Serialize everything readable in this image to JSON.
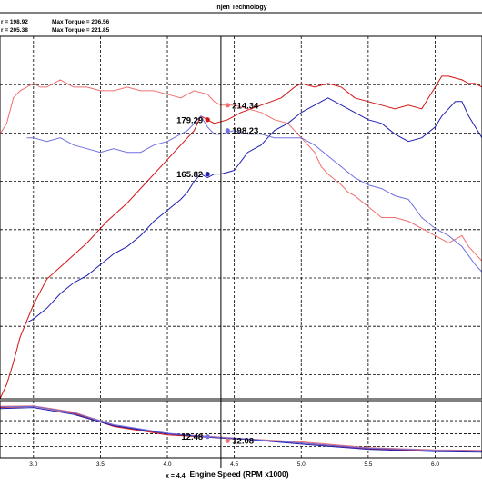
{
  "title": "Injen Technology",
  "legend": {
    "power_a": "r = 198.92",
    "torque_a": "Max Torque = 206.56",
    "power_b": "r = 205.38",
    "torque_b": "Max Torque = 221.85"
  },
  "xlabel": "Engine Speed (RPM x1000)",
  "xlabel_partial": "x = 4.4",
  "cursor_x": 4.4,
  "colors": {
    "red": "#d21414",
    "lightred": "#f07070",
    "blue": "#2020b0",
    "lightblue": "#7070e0"
  },
  "chart_data": [
    {
      "type": "line",
      "title": "Injen Technology",
      "xlabel": "Engine Speed (RPM x1000)",
      "xlim": [
        2.75,
        6.35
      ],
      "ylim": [
        0,
        1
      ],
      "x_ticks": [
        3.0,
        3.5,
        4.0,
        4.5,
        5.0,
        5.5,
        6.0
      ],
      "x_tick_labels": [
        "3.0",
        "3.5",
        "4.0",
        "4.5",
        "5.0",
        "5.5",
        "6.0"
      ],
      "grid": true,
      "series": [
        {
          "key": "red",
          "points": [
            [
              2.75,
              0.0
            ],
            [
              2.8,
              0.04
            ],
            [
              2.85,
              0.1
            ],
            [
              2.9,
              0.17
            ],
            [
              3.0,
              0.26
            ],
            [
              3.1,
              0.33
            ],
            [
              3.25,
              0.38
            ],
            [
              3.4,
              0.43
            ],
            [
              3.55,
              0.49
            ],
            [
              3.7,
              0.54
            ],
            [
              3.85,
              0.6
            ],
            [
              4.0,
              0.66
            ],
            [
              4.1,
              0.7
            ],
            [
              4.2,
              0.74
            ],
            [
              4.25,
              0.78
            ],
            [
              4.3,
              0.77
            ],
            [
              4.35,
              0.76
            ],
            [
              4.45,
              0.77
            ],
            [
              4.55,
              0.79
            ],
            [
              4.7,
              0.81
            ],
            [
              4.85,
              0.83
            ],
            [
              4.95,
              0.86
            ],
            [
              5.0,
              0.87
            ],
            [
              5.1,
              0.86
            ],
            [
              5.2,
              0.87
            ],
            [
              5.3,
              0.86
            ],
            [
              5.4,
              0.83
            ],
            [
              5.5,
              0.82
            ],
            [
              5.6,
              0.81
            ],
            [
              5.7,
              0.8
            ],
            [
              5.8,
              0.81
            ],
            [
              5.9,
              0.8
            ],
            [
              5.95,
              0.83
            ],
            [
              6.0,
              0.86
            ],
            [
              6.05,
              0.89
            ],
            [
              6.1,
              0.89
            ],
            [
              6.2,
              0.88
            ],
            [
              6.25,
              0.87
            ],
            [
              6.3,
              0.87
            ],
            [
              6.35,
              0.86
            ]
          ]
        },
        {
          "key": "lightred",
          "points": [
            [
              2.75,
              0.73
            ],
            [
              2.8,
              0.76
            ],
            [
              2.85,
              0.83
            ],
            [
              2.9,
              0.85
            ],
            [
              2.95,
              0.86
            ],
            [
              3.0,
              0.87
            ],
            [
              3.05,
              0.86
            ],
            [
              3.1,
              0.86
            ],
            [
              3.15,
              0.87
            ],
            [
              3.2,
              0.88
            ],
            [
              3.3,
              0.86
            ],
            [
              3.4,
              0.86
            ],
            [
              3.5,
              0.85
            ],
            [
              3.6,
              0.85
            ],
            [
              3.7,
              0.86
            ],
            [
              3.8,
              0.85
            ],
            [
              3.9,
              0.85
            ],
            [
              4.0,
              0.84
            ],
            [
              4.1,
              0.83
            ],
            [
              4.15,
              0.84
            ],
            [
              4.2,
              0.85
            ],
            [
              4.3,
              0.84
            ],
            [
              4.35,
              0.82
            ],
            [
              4.4,
              0.81
            ],
            [
              4.45,
              0.81
            ],
            [
              4.5,
              0.81
            ],
            [
              4.6,
              0.8
            ],
            [
              4.7,
              0.79
            ],
            [
              4.8,
              0.77
            ],
            [
              4.9,
              0.76
            ],
            [
              5.0,
              0.72
            ],
            [
              5.05,
              0.7
            ],
            [
              5.1,
              0.68
            ],
            [
              5.15,
              0.64
            ],
            [
              5.2,
              0.62
            ],
            [
              5.3,
              0.59
            ],
            [
              5.35,
              0.57
            ],
            [
              5.4,
              0.56
            ],
            [
              5.5,
              0.53
            ],
            [
              5.6,
              0.5
            ],
            [
              5.7,
              0.5
            ],
            [
              5.8,
              0.49
            ],
            [
              5.9,
              0.47
            ],
            [
              6.0,
              0.45
            ],
            [
              6.1,
              0.43
            ],
            [
              6.2,
              0.45
            ],
            [
              6.25,
              0.42
            ],
            [
              6.3,
              0.4
            ],
            [
              6.35,
              0.38
            ]
          ]
        },
        {
          "key": "blue",
          "points": [
            [
              2.95,
              0.21
            ],
            [
              3.0,
              0.22
            ],
            [
              3.1,
              0.25
            ],
            [
              3.2,
              0.29
            ],
            [
              3.3,
              0.32
            ],
            [
              3.4,
              0.34
            ],
            [
              3.5,
              0.37
            ],
            [
              3.6,
              0.4
            ],
            [
              3.7,
              0.42
            ],
            [
              3.8,
              0.45
            ],
            [
              3.9,
              0.49
            ],
            [
              4.0,
              0.52
            ],
            [
              4.1,
              0.55
            ],
            [
              4.15,
              0.57
            ],
            [
              4.2,
              0.6
            ],
            [
              4.25,
              0.62
            ],
            [
              4.3,
              0.61
            ],
            [
              4.35,
              0.62
            ],
            [
              4.4,
              0.62
            ],
            [
              4.5,
              0.63
            ],
            [
              4.6,
              0.68
            ],
            [
              4.7,
              0.7
            ],
            [
              4.8,
              0.74
            ],
            [
              4.9,
              0.76
            ],
            [
              5.0,
              0.79
            ],
            [
              5.1,
              0.81
            ],
            [
              5.15,
              0.82
            ],
            [
              5.2,
              0.83
            ],
            [
              5.25,
              0.82
            ],
            [
              5.3,
              0.81
            ],
            [
              5.4,
              0.79
            ],
            [
              5.5,
              0.77
            ],
            [
              5.6,
              0.76
            ],
            [
              5.7,
              0.73
            ],
            [
              5.8,
              0.71
            ],
            [
              5.9,
              0.72
            ],
            [
              6.0,
              0.75
            ],
            [
              6.05,
              0.78
            ],
            [
              6.1,
              0.8
            ],
            [
              6.15,
              0.82
            ],
            [
              6.2,
              0.82
            ],
            [
              6.25,
              0.78
            ],
            [
              6.3,
              0.75
            ],
            [
              6.35,
              0.72
            ]
          ]
        },
        {
          "key": "lightblue",
          "points": [
            [
              2.95,
              0.72
            ],
            [
              3.0,
              0.72
            ],
            [
              3.1,
              0.71
            ],
            [
              3.2,
              0.72
            ],
            [
              3.3,
              0.7
            ],
            [
              3.4,
              0.69
            ],
            [
              3.5,
              0.68
            ],
            [
              3.6,
              0.69
            ],
            [
              3.7,
              0.68
            ],
            [
              3.8,
              0.68
            ],
            [
              3.9,
              0.7
            ],
            [
              4.0,
              0.71
            ],
            [
              4.1,
              0.73
            ],
            [
              4.15,
              0.74
            ],
            [
              4.2,
              0.76
            ],
            [
              4.25,
              0.78
            ],
            [
              4.3,
              0.75
            ],
            [
              4.35,
              0.73
            ],
            [
              4.4,
              0.73
            ],
            [
              4.5,
              0.74
            ],
            [
              4.6,
              0.73
            ],
            [
              4.7,
              0.73
            ],
            [
              4.8,
              0.72
            ],
            [
              4.9,
              0.72
            ],
            [
              5.0,
              0.72
            ],
            [
              5.1,
              0.7
            ],
            [
              5.2,
              0.67
            ],
            [
              5.3,
              0.64
            ],
            [
              5.4,
              0.61
            ],
            [
              5.5,
              0.59
            ],
            [
              5.6,
              0.58
            ],
            [
              5.7,
              0.56
            ],
            [
              5.8,
              0.55
            ],
            [
              5.9,
              0.5
            ],
            [
              6.0,
              0.47
            ],
            [
              6.1,
              0.45
            ],
            [
              6.2,
              0.42
            ],
            [
              6.3,
              0.37
            ],
            [
              6.35,
              0.35
            ]
          ]
        }
      ],
      "annotations": [
        {
          "text": "214.34",
          "x": 4.45,
          "y": 0.81,
          "key": "lightred",
          "side": "right"
        },
        {
          "text": "179.29",
          "x": 4.3,
          "y": 0.77,
          "key": "red",
          "side": "left"
        },
        {
          "text": "198.23",
          "x": 4.45,
          "y": 0.74,
          "key": "lightblue",
          "side": "right"
        },
        {
          "text": "165.82",
          "x": 4.3,
          "y": 0.62,
          "key": "blue",
          "side": "left"
        }
      ]
    },
    {
      "type": "line",
      "xlabel": "Engine Speed (RPM x1000)",
      "xlim": [
        2.75,
        6.35
      ],
      "ylim": [
        0,
        1
      ],
      "grid": true,
      "series": [
        {
          "key": "red",
          "points": [
            [
              2.75,
              0.88
            ],
            [
              3.0,
              0.9
            ],
            [
              3.3,
              0.78
            ],
            [
              3.6,
              0.55
            ],
            [
              4.0,
              0.4
            ],
            [
              4.3,
              0.36
            ],
            [
              4.6,
              0.32
            ],
            [
              5.0,
              0.26
            ],
            [
              5.5,
              0.16
            ],
            [
              6.0,
              0.12
            ],
            [
              6.35,
              0.12
            ]
          ]
        },
        {
          "key": "lightred",
          "points": [
            [
              2.75,
              0.9
            ],
            [
              3.0,
              0.91
            ],
            [
              3.3,
              0.8
            ],
            [
              3.6,
              0.57
            ],
            [
              4.0,
              0.42
            ],
            [
              4.3,
              0.38
            ],
            [
              4.6,
              0.33
            ],
            [
              5.0,
              0.28
            ],
            [
              5.5,
              0.18
            ],
            [
              6.0,
              0.14
            ],
            [
              6.35,
              0.13
            ]
          ]
        },
        {
          "key": "blue",
          "points": [
            [
              2.75,
              0.86
            ],
            [
              3.0,
              0.88
            ],
            [
              3.3,
              0.76
            ],
            [
              3.6,
              0.56
            ],
            [
              4.0,
              0.42
            ],
            [
              4.3,
              0.36
            ],
            [
              4.6,
              0.32
            ],
            [
              5.0,
              0.24
            ],
            [
              5.5,
              0.15
            ],
            [
              6.0,
              0.11
            ],
            [
              6.35,
              0.1
            ]
          ]
        },
        {
          "key": "lightblue",
          "points": [
            [
              2.75,
              0.89
            ],
            [
              3.0,
              0.9
            ],
            [
              3.3,
              0.79
            ],
            [
              3.6,
              0.58
            ],
            [
              4.0,
              0.43
            ],
            [
              4.3,
              0.37
            ],
            [
              4.6,
              0.33
            ],
            [
              5.0,
              0.26
            ],
            [
              5.5,
              0.17
            ],
            [
              6.0,
              0.13
            ],
            [
              6.35,
              0.12
            ]
          ]
        }
      ],
      "annotations": [
        {
          "text": "12.48",
          "x": 4.3,
          "y": 0.37,
          "key": "lightblue",
          "side": "left"
        },
        {
          "text": "12.08",
          "x": 4.45,
          "y": 0.3,
          "key": "lightred",
          "side": "right"
        }
      ]
    }
  ]
}
